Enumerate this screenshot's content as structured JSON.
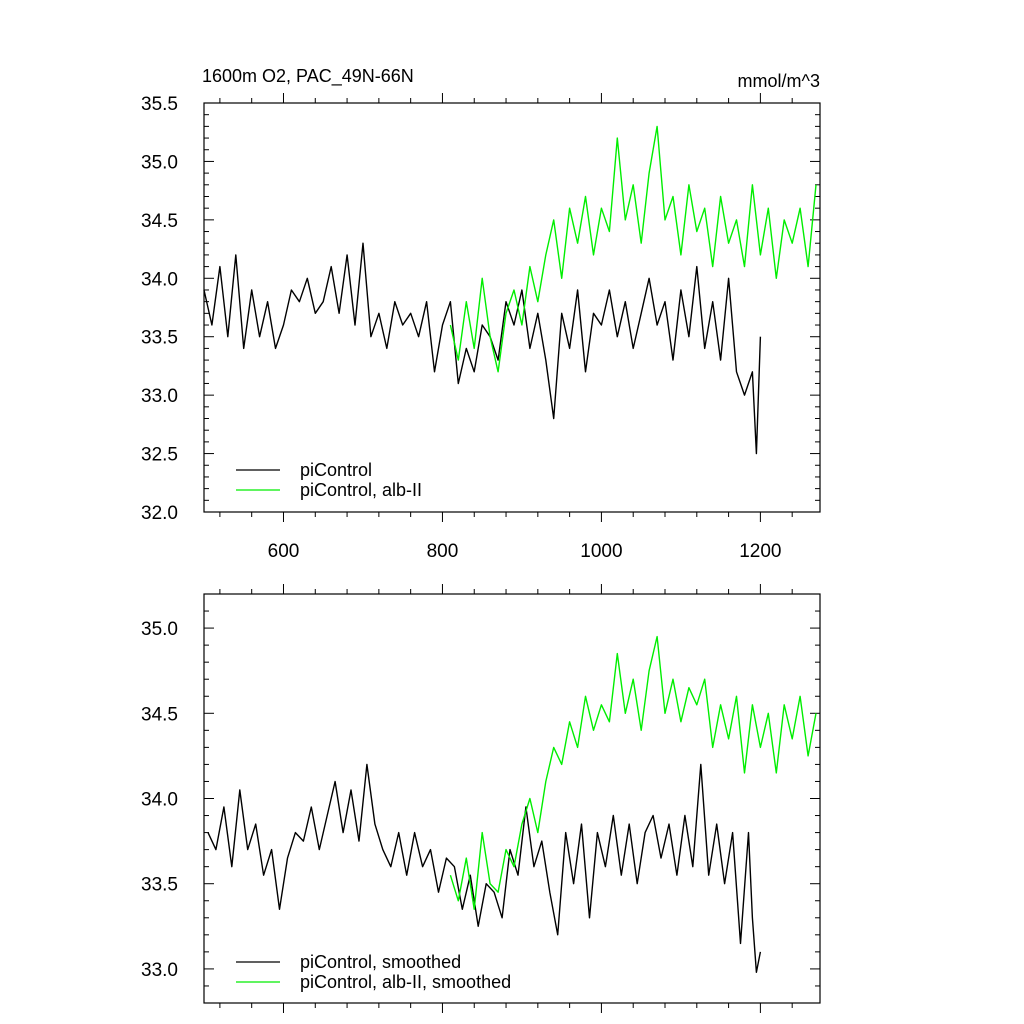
{
  "colors": {
    "black_series": "#000000",
    "green_series": "#00ee00",
    "background": "#ffffff"
  },
  "chart_data": [
    {
      "type": "line",
      "title": "1600m O2, PAC_49N-66N",
      "units": "mmol/m^3",
      "xlim": [
        500,
        1275
      ],
      "ylim": [
        32.0,
        35.5
      ],
      "xticks": [
        600,
        800,
        1000,
        1200
      ],
      "xtick_labels": [
        "600",
        "800",
        "1000",
        "1200"
      ],
      "yticks": [
        32.0,
        32.5,
        33.0,
        33.5,
        34.0,
        34.5,
        35.0,
        35.5
      ],
      "ytick_labels": [
        "32.0",
        "32.5",
        "33.0",
        "33.5",
        "34.0",
        "34.5",
        "35.0",
        "35.5"
      ],
      "legend_position": "bottom-left",
      "series": [
        {
          "name": "piControl",
          "color": "#000000",
          "x": [
            500,
            510,
            520,
            530,
            540,
            550,
            560,
            570,
            580,
            590,
            600,
            610,
            620,
            630,
            640,
            650,
            660,
            670,
            680,
            690,
            700,
            710,
            720,
            730,
            740,
            750,
            760,
            770,
            780,
            790,
            800,
            810,
            820,
            830,
            840,
            850,
            860,
            870,
            880,
            890,
            900,
            910,
            920,
            930,
            940,
            950,
            960,
            970,
            980,
            990,
            1000,
            1010,
            1020,
            1030,
            1040,
            1050,
            1060,
            1070,
            1080,
            1090,
            1100,
            1110,
            1120,
            1130,
            1140,
            1150,
            1160,
            1170,
            1180,
            1190,
            1195,
            1200
          ],
          "values": [
            33.9,
            33.6,
            34.1,
            33.5,
            34.2,
            33.4,
            33.9,
            33.5,
            33.8,
            33.4,
            33.6,
            33.9,
            33.8,
            34.0,
            33.7,
            33.8,
            34.1,
            33.7,
            34.2,
            33.6,
            34.3,
            33.5,
            33.7,
            33.4,
            33.8,
            33.6,
            33.7,
            33.5,
            33.8,
            33.2,
            33.6,
            33.8,
            33.1,
            33.4,
            33.2,
            33.6,
            33.5,
            33.3,
            33.8,
            33.6,
            33.9,
            33.4,
            33.7,
            33.3,
            32.8,
            33.7,
            33.4,
            33.9,
            33.2,
            33.7,
            33.6,
            33.9,
            33.5,
            33.8,
            33.4,
            33.7,
            34.0,
            33.6,
            33.8,
            33.3,
            33.9,
            33.5,
            34.1,
            33.4,
            33.8,
            33.3,
            34.0,
            33.2,
            33.0,
            33.2,
            32.5,
            33.5
          ]
        },
        {
          "name": "piControl, alb-II",
          "color": "#00ee00",
          "x": [
            810,
            820,
            830,
            840,
            850,
            860,
            870,
            880,
            890,
            900,
            910,
            920,
            930,
            940,
            950,
            960,
            970,
            980,
            990,
            1000,
            1010,
            1020,
            1030,
            1040,
            1050,
            1060,
            1070,
            1080,
            1090,
            1100,
            1110,
            1120,
            1130,
            1140,
            1150,
            1160,
            1170,
            1180,
            1190,
            1200,
            1210,
            1220,
            1230,
            1240,
            1250,
            1260,
            1270
          ],
          "values": [
            33.6,
            33.3,
            33.8,
            33.4,
            34.0,
            33.5,
            33.2,
            33.7,
            33.9,
            33.6,
            34.1,
            33.8,
            34.2,
            34.5,
            34.0,
            34.6,
            34.3,
            34.7,
            34.2,
            34.6,
            34.4,
            35.2,
            34.5,
            34.8,
            34.3,
            34.9,
            35.3,
            34.5,
            34.7,
            34.2,
            34.8,
            34.4,
            34.6,
            34.1,
            34.7,
            34.3,
            34.5,
            34.1,
            34.8,
            34.2,
            34.6,
            34.0,
            34.5,
            34.3,
            34.6,
            34.1,
            34.8
          ]
        }
      ]
    },
    {
      "type": "line",
      "xlim": [
        500,
        1275
      ],
      "ylim": [
        32.8,
        35.2
      ],
      "xticks": [
        600,
        800,
        1000,
        1200
      ],
      "yticks": [
        33.0,
        33.5,
        34.0,
        34.5,
        35.0
      ],
      "ytick_labels": [
        "33.0",
        "33.5",
        "34.0",
        "34.5",
        "35.0"
      ],
      "legend_position": "bottom-left",
      "series": [
        {
          "name": "piControl, smoothed",
          "color": "#000000",
          "x": [
            505,
            515,
            525,
            535,
            545,
            555,
            565,
            575,
            585,
            595,
            605,
            615,
            625,
            635,
            645,
            655,
            665,
            675,
            685,
            695,
            705,
            715,
            725,
            735,
            745,
            755,
            765,
            775,
            785,
            795,
            805,
            815,
            825,
            835,
            845,
            855,
            865,
            875,
            885,
            895,
            905,
            915,
            925,
            935,
            945,
            955,
            965,
            975,
            985,
            995,
            1005,
            1015,
            1025,
            1035,
            1045,
            1055,
            1065,
            1075,
            1085,
            1095,
            1105,
            1115,
            1125,
            1135,
            1145,
            1155,
            1165,
            1175,
            1185,
            1190,
            1195,
            1200
          ],
          "values": [
            33.8,
            33.7,
            33.95,
            33.6,
            34.05,
            33.7,
            33.85,
            33.55,
            33.7,
            33.35,
            33.65,
            33.8,
            33.75,
            33.95,
            33.7,
            33.9,
            34.1,
            33.8,
            34.05,
            33.75,
            34.2,
            33.85,
            33.7,
            33.6,
            33.8,
            33.55,
            33.8,
            33.6,
            33.7,
            33.45,
            33.65,
            33.6,
            33.35,
            33.55,
            33.25,
            33.5,
            33.45,
            33.3,
            33.7,
            33.55,
            33.95,
            33.6,
            33.75,
            33.45,
            33.2,
            33.8,
            33.5,
            33.85,
            33.3,
            33.8,
            33.6,
            33.9,
            33.55,
            33.85,
            33.5,
            33.8,
            33.9,
            33.65,
            33.85,
            33.55,
            33.9,
            33.6,
            34.2,
            33.55,
            33.85,
            33.5,
            33.8,
            33.15,
            33.8,
            33.3,
            32.98,
            33.1
          ]
        },
        {
          "name": "piControl, alb-II, smoothed",
          "color": "#00ee00",
          "x": [
            810,
            820,
            830,
            840,
            850,
            860,
            870,
            880,
            890,
            900,
            910,
            920,
            930,
            940,
            950,
            960,
            970,
            980,
            990,
            1000,
            1010,
            1020,
            1030,
            1040,
            1050,
            1060,
            1070,
            1080,
            1090,
            1100,
            1110,
            1120,
            1130,
            1140,
            1150,
            1160,
            1170,
            1180,
            1190,
            1200,
            1210,
            1220,
            1230,
            1240,
            1250,
            1260,
            1270
          ],
          "values": [
            33.55,
            33.4,
            33.65,
            33.35,
            33.8,
            33.5,
            33.45,
            33.7,
            33.6,
            33.85,
            34.0,
            33.8,
            34.1,
            34.3,
            34.2,
            34.45,
            34.3,
            34.6,
            34.4,
            34.55,
            34.45,
            34.85,
            34.5,
            34.7,
            34.4,
            34.75,
            34.95,
            34.5,
            34.7,
            34.45,
            34.65,
            34.55,
            34.7,
            34.3,
            34.55,
            34.35,
            34.6,
            34.15,
            34.55,
            34.3,
            34.5,
            34.15,
            34.55,
            34.35,
            34.6,
            34.25,
            34.5
          ]
        }
      ]
    }
  ]
}
